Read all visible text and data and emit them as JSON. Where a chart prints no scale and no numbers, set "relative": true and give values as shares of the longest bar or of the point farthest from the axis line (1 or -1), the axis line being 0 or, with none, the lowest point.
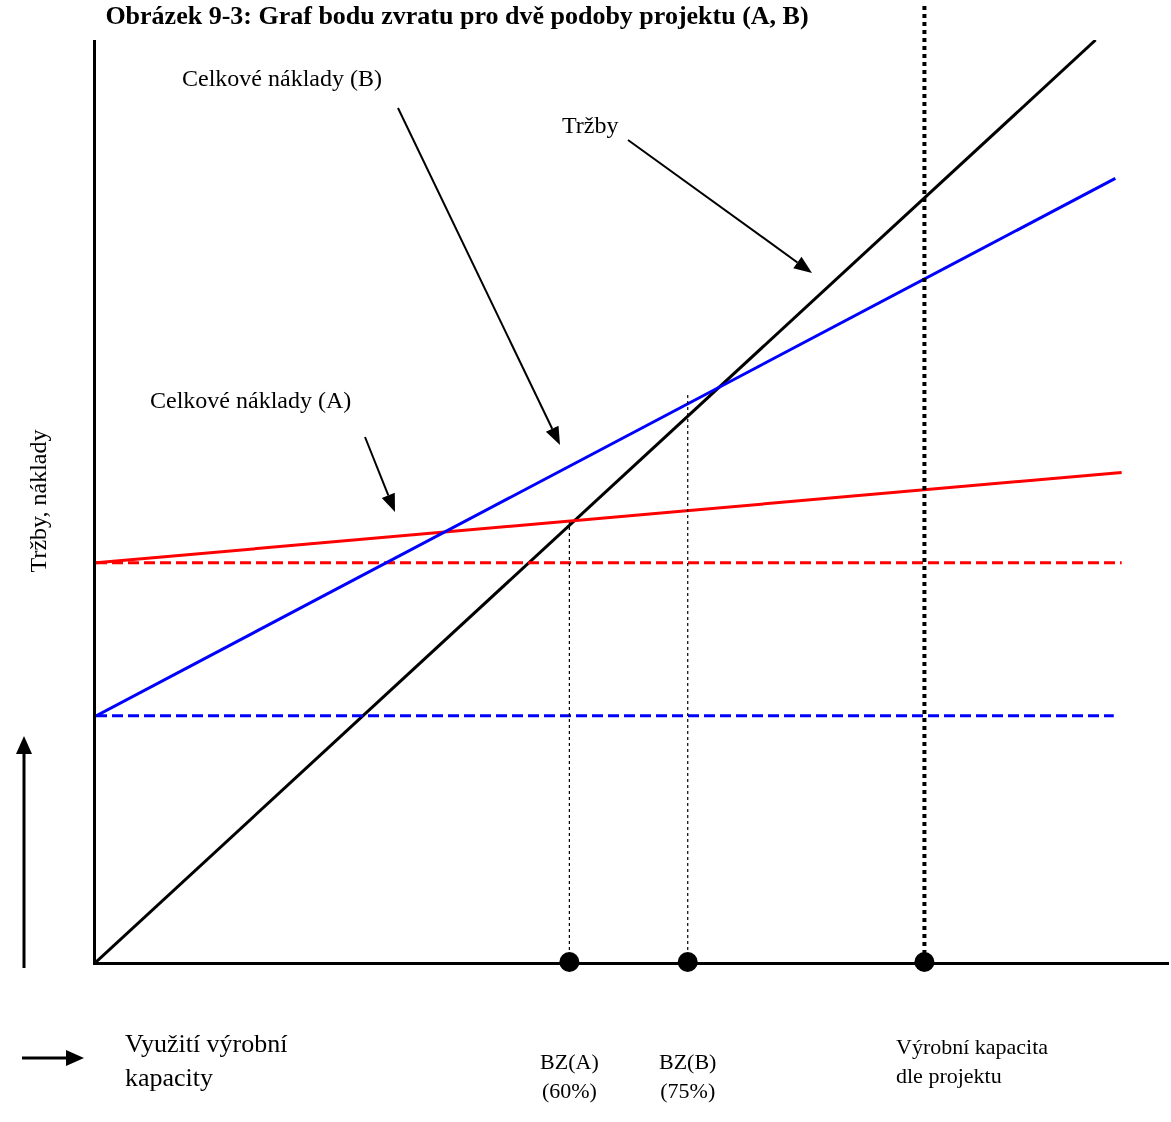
{
  "chart_data": {
    "type": "line",
    "relative": true,
    "title": "Obrázek 9-3: Graf bodu zvratu pro dvě podoby projektu (A, B)",
    "xlabel": "Využití výrobní\nkapacity",
    "ylabel": "Tržby, náklady",
    "xlim": [
      0,
      136
    ],
    "xticks": [
      {
        "value": 60,
        "label": "BZ(A)\n(60%)"
      },
      {
        "value": 75,
        "label": "BZ(B)\n(75%)"
      }
    ],
    "series": [
      {
        "color": "#000000",
        "x": [
          0,
          126.7
        ],
        "values": [
          0,
          1
        ],
        "line_style": "solid",
        "marker": "none"
      },
      {
        "color": "#ff0000",
        "x": [
          0,
          130
        ],
        "values": [
          0.433,
          0.531
        ],
        "line_style": "solid",
        "marker": "none"
      },
      {
        "color": "#ff0000",
        "x": [
          0,
          130
        ],
        "values": [
          0.433,
          0.433
        ],
        "line_style": "dashed",
        "marker": "none"
      },
      {
        "color": "#0000ff",
        "x": [
          0,
          129.2
        ],
        "values": [
          0.267,
          0.85
        ],
        "line_style": "solid",
        "marker": "none"
      },
      {
        "color": "#0000ff",
        "x": [
          0,
          129
        ],
        "values": [
          0.267,
          0.267
        ],
        "line_style": "dashed",
        "marker": "none"
      },
      {
        "color": "#000000",
        "x": [
          60,
          60
        ],
        "values": [
          0,
          0.477
        ],
        "line_style": "dotted",
        "marker": "none"
      },
      {
        "color": "#000000",
        "x": [
          75,
          75
        ],
        "values": [
          0,
          0.617
        ],
        "line_style": "dotted",
        "marker": "none"
      },
      {
        "type": "scatter",
        "color": "#000000",
        "x": [
          60,
          75,
          105
        ],
        "values": [
          0,
          0,
          0
        ],
        "marker": "circle"
      }
    ],
    "ref_lines": [
      {
        "axis": "x",
        "value": 105,
        "label": "Výrobní kapacita\ndle projektu",
        "color": "#000000",
        "line_style": "dotted"
      }
    ],
    "annotations": [
      "Celkové náklady (B)",
      "Tržby",
      "Celkové náklady (A)"
    ]
  }
}
